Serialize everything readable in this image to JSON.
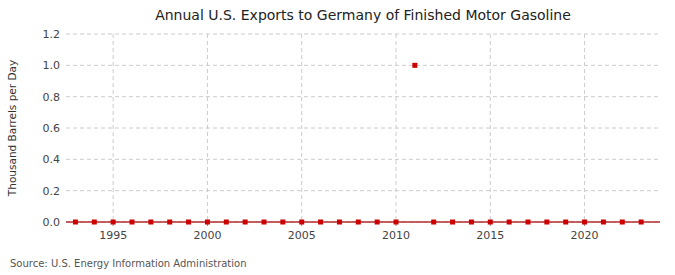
{
  "chart_data": {
    "type": "scatter",
    "title": "Annual U.S. Exports to Germany of Finished Motor Gasoline",
    "ylabel": "Thousand Barrels per Day",
    "source": "Source: U.S. Energy Information Administration",
    "x": [
      1993,
      1994,
      1995,
      1996,
      1997,
      1998,
      1999,
      2000,
      2001,
      2002,
      2003,
      2004,
      2005,
      2006,
      2007,
      2008,
      2009,
      2010,
      2011,
      2012,
      2013,
      2014,
      2015,
      2016,
      2017,
      2018,
      2019,
      2020,
      2021,
      2022,
      2023
    ],
    "values": [
      0,
      0,
      0,
      0,
      0,
      0,
      0,
      0,
      0,
      0,
      0,
      0,
      0,
      0,
      0,
      0,
      0,
      0,
      1.0,
      0,
      0,
      0,
      0,
      0,
      0,
      0,
      0,
      0,
      0,
      0,
      0
    ],
    "color": "#cc0000",
    "marker": "square",
    "xlim": [
      1992.5,
      2024
    ],
    "ylim": [
      0,
      1.2
    ],
    "xticks": [
      1995,
      2000,
      2005,
      2010,
      2015,
      2020
    ],
    "yticks": [
      {
        "value": 0.0,
        "label": "0.0"
      },
      0.2,
      0.4,
      0.6,
      0.8,
      {
        "value": 1.0,
        "label": "1.0"
      },
      1.2
    ],
    "grid": true
  }
}
